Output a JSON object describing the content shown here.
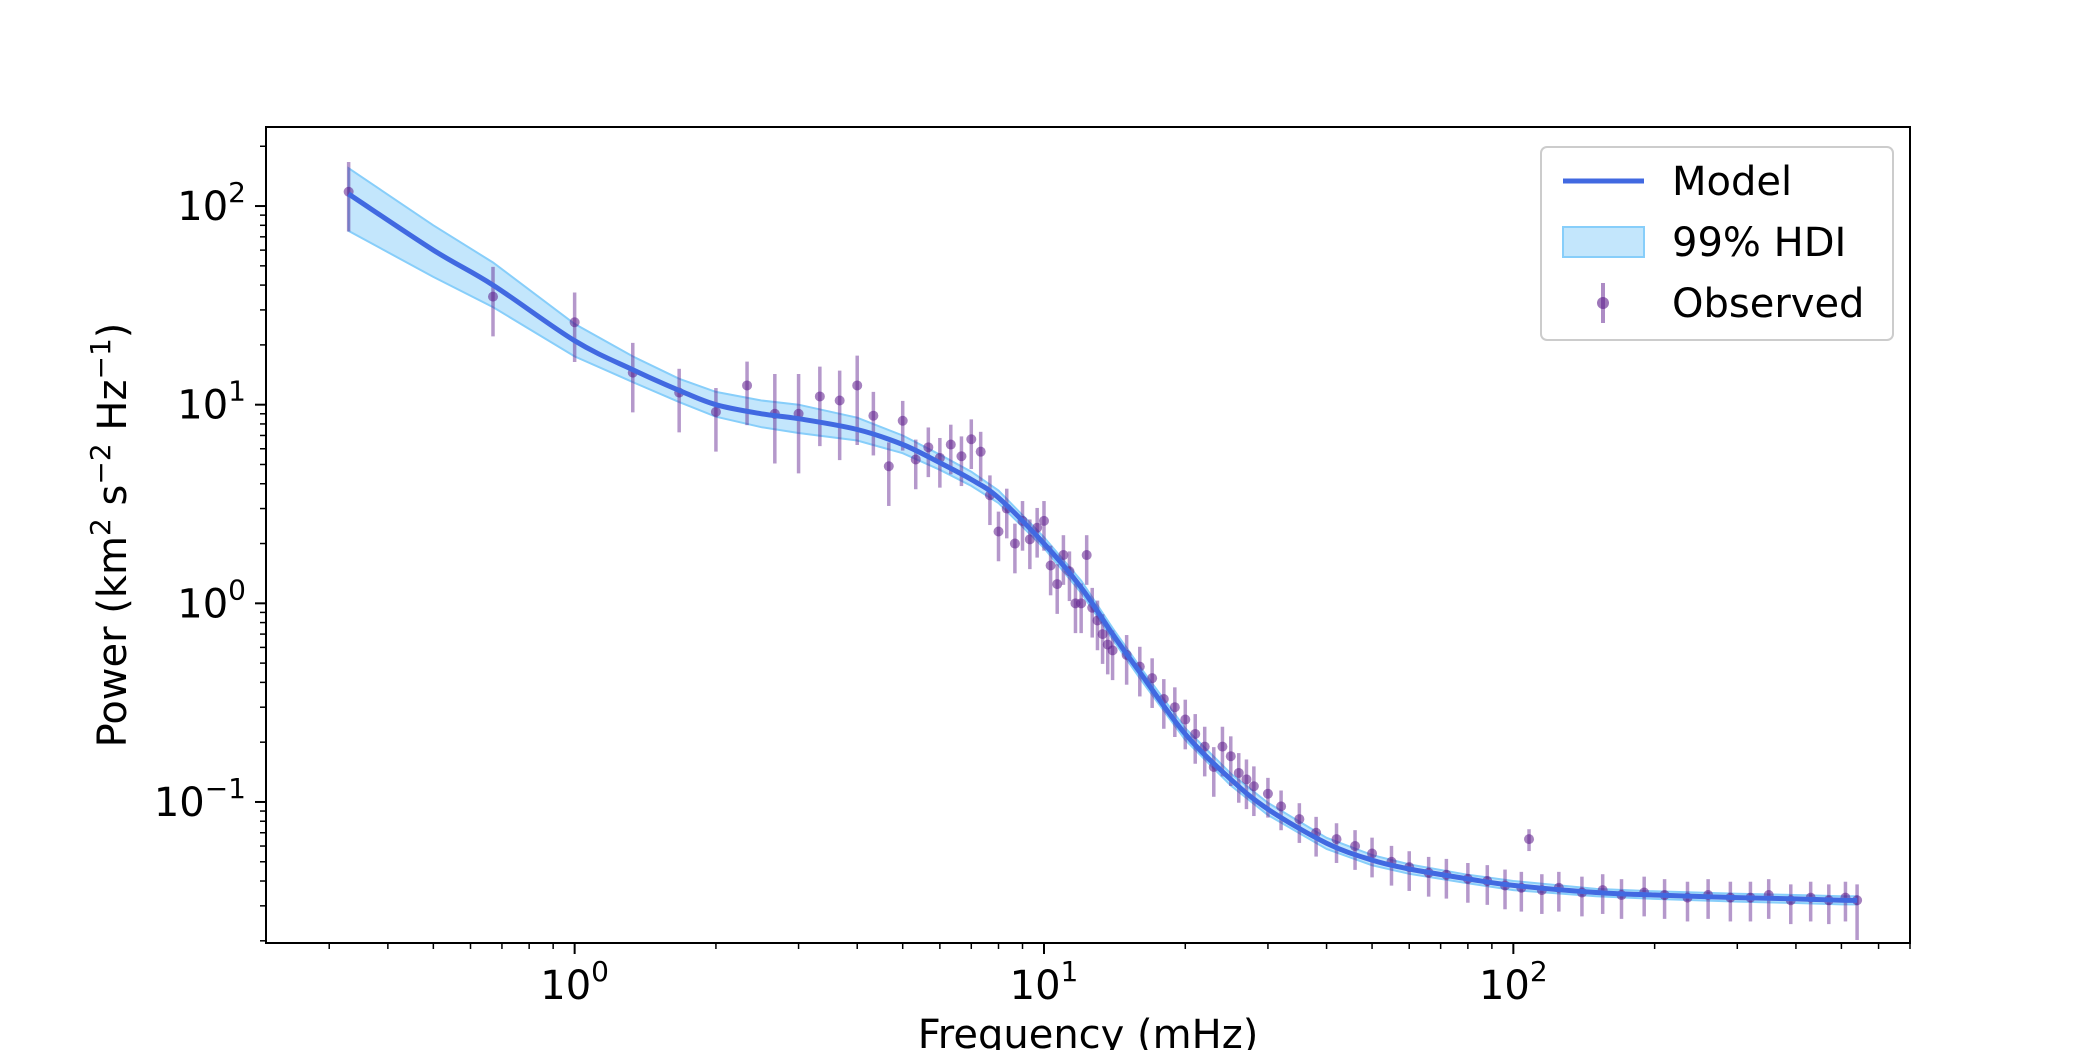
{
  "chart_data": {
    "type": "line",
    "title": "",
    "xlabel": "Frequency (mHz)",
    "ylabel_parts": {
      "a": "Power (km",
      "a_exp": "2",
      "b": " s",
      "b_exp": "−2",
      "c": " Hz",
      "c_exp": "−1",
      "d": ")"
    },
    "x_scale": "log",
    "y_scale": "log",
    "xlim": [
      0.22,
      700
    ],
    "ylim": [
      0.0195,
      250
    ],
    "x_ticks": [
      {
        "value": 1,
        "base": "10",
        "exp": "0"
      },
      {
        "value": 10,
        "base": "10",
        "exp": "1"
      },
      {
        "value": 100,
        "base": "10",
        "exp": "2"
      }
    ],
    "y_ticks": [
      {
        "value": 0.1,
        "base": "10",
        "exp": "−1"
      },
      {
        "value": 1,
        "base": "10",
        "exp": "0"
      },
      {
        "value": 10,
        "base": "10",
        "exp": "1"
      },
      {
        "value": 100,
        "base": "10",
        "exp": "2"
      }
    ],
    "legend": {
      "position": "top-right",
      "entries": [
        "Model",
        "99% HDI",
        "Observed"
      ]
    },
    "colors": {
      "model": "#4169e1",
      "hdi_fill": "#87cefa",
      "observed": "#5b1a8b"
    },
    "model": {
      "name": "Model",
      "x": [
        0.33,
        0.5,
        0.67,
        1.0,
        1.33,
        1.67,
        2.0,
        2.5,
        3.0,
        4.0,
        5.0,
        6.0,
        7.0,
        8.0,
        10.0,
        12.0,
        14.0,
        16.0,
        20.0,
        25.0,
        30.0,
        40.0,
        50.0,
        60.0,
        80.0,
        100.0,
        150.0,
        200.0,
        300.0,
        400.0,
        500.0,
        540.0
      ],
      "y": [
        115,
        60,
        40,
        21,
        15,
        11.8,
        10.0,
        9.0,
        8.5,
        7.5,
        6.3,
        5.1,
        4.2,
        3.4,
        2.0,
        1.2,
        0.7,
        0.45,
        0.22,
        0.13,
        0.092,
        0.062,
        0.051,
        0.046,
        0.041,
        0.038,
        0.035,
        0.034,
        0.033,
        0.0325,
        0.032,
        0.032
      ]
    },
    "hdi": {
      "name": "99% HDI",
      "x": [
        0.33,
        0.5,
        0.67,
        1.0,
        1.33,
        1.67,
        2.0,
        2.5,
        3.0,
        4.0,
        5.0,
        6.0,
        7.0,
        8.0,
        10.0,
        12.0,
        14.0,
        16.0,
        20.0,
        25.0,
        30.0,
        40.0,
        50.0,
        60.0,
        80.0,
        100.0,
        150.0,
        200.0,
        300.0,
        400.0,
        500.0,
        540.0
      ],
      "lower": [
        75,
        44,
        31,
        17.5,
        13,
        10.3,
        8.7,
        7.7,
        7.2,
        6.6,
        5.7,
        4.7,
        3.9,
        3.2,
        1.9,
        1.13,
        0.66,
        0.42,
        0.205,
        0.121,
        0.086,
        0.058,
        0.048,
        0.0435,
        0.039,
        0.036,
        0.0335,
        0.0325,
        0.0315,
        0.031,
        0.0305,
        0.0305
      ],
      "upper": [
        155,
        80,
        52,
        25.5,
        17.5,
        13.5,
        11.6,
        10.5,
        10.0,
        8.6,
        7.0,
        5.6,
        4.6,
        3.7,
        2.15,
        1.3,
        0.75,
        0.48,
        0.235,
        0.139,
        0.099,
        0.066,
        0.054,
        0.0485,
        0.043,
        0.04,
        0.0365,
        0.0355,
        0.0345,
        0.034,
        0.0335,
        0.0335
      ]
    },
    "observed": {
      "name": "Observed",
      "x": [
        0.33,
        0.67,
        1.0,
        1.33,
        1.67,
        2.0,
        2.33,
        2.67,
        3.0,
        3.33,
        3.67,
        4.0,
        4.33,
        4.67,
        5.0,
        5.33,
        5.67,
        6.0,
        6.33,
        6.67,
        7.0,
        7.33,
        7.67,
        8.0,
        8.33,
        8.67,
        9.0,
        9.33,
        9.67,
        10.0,
        10.33,
        10.67,
        11.0,
        11.33,
        11.67,
        12.0,
        12.33,
        12.67,
        13.0,
        13.33,
        13.67,
        14.0,
        15.0,
        16.0,
        17.0,
        18.0,
        19.0,
        20.0,
        21.0,
        22.0,
        23.0,
        24.0,
        25.0,
        26.0,
        27.0,
        28.0,
        30.0,
        32.0,
        35.0,
        38.0,
        42.0,
        46.0,
        50.0,
        55.0,
        60.0,
        66.0,
        72.0,
        80.0,
        88.0,
        96.0,
        104.0,
        108.0,
        115.0,
        125.0,
        140.0,
        155.0,
        170.0,
        190.0,
        210.0,
        235.0,
        260.0,
        290.0,
        320.0,
        350.0,
        390.0,
        430.0,
        470.0,
        510.0,
        540.0
      ],
      "y": [
        118,
        35,
        26,
        14.5,
        11.5,
        9.2,
        12.5,
        9.0,
        9.0,
        11.0,
        10.5,
        12.5,
        8.8,
        4.9,
        8.3,
        5.3,
        6.1,
        5.4,
        6.3,
        5.5,
        6.7,
        5.8,
        3.5,
        2.3,
        3.0,
        2.0,
        2.6,
        2.1,
        2.4,
        2.6,
        1.55,
        1.25,
        1.75,
        1.45,
        1.0,
        1.0,
        1.75,
        0.95,
        0.82,
        0.7,
        0.62,
        0.58,
        0.55,
        0.48,
        0.42,
        0.33,
        0.3,
        0.26,
        0.22,
        0.19,
        0.15,
        0.19,
        0.17,
        0.14,
        0.13,
        0.12,
        0.11,
        0.095,
        0.082,
        0.07,
        0.065,
        0.06,
        0.055,
        0.05,
        0.047,
        0.044,
        0.043,
        0.041,
        0.04,
        0.038,
        0.037,
        0.065,
        0.036,
        0.037,
        0.035,
        0.036,
        0.034,
        0.035,
        0.034,
        0.033,
        0.034,
        0.033,
        0.033,
        0.034,
        0.032,
        0.033,
        0.032,
        0.033,
        0.032
      ],
      "err_lower": [
        0.2,
        0.2,
        0.2,
        0.2,
        0.2,
        0.2,
        0.2,
        0.25,
        0.3,
        0.25,
        0.3,
        0.3,
        0.2,
        0.2,
        0.15,
        0.15,
        0.15,
        0.15,
        0.15,
        0.15,
        0.15,
        0.15,
        0.15,
        0.15,
        0.15,
        0.15,
        0.15,
        0.15,
        0.15,
        0.15,
        0.15,
        0.15,
        0.15,
        0.15,
        0.15,
        0.15,
        0.15,
        0.15,
        0.15,
        0.15,
        0.15,
        0.15,
        0.15,
        0.15,
        0.15,
        0.15,
        0.15,
        0.15,
        0.15,
        0.15,
        0.15,
        0.15,
        0.15,
        0.15,
        0.15,
        0.15,
        0.12,
        0.12,
        0.12,
        0.12,
        0.12,
        0.12,
        0.12,
        0.12,
        0.12,
        0.12,
        0.12,
        0.12,
        0.12,
        0.12,
        0.12,
        0.06,
        0.12,
        0.12,
        0.12,
        0.12,
        0.12,
        0.12,
        0.12,
        0.12,
        0.12,
        0.12,
        0.12,
        0.12,
        0.12,
        0.12,
        0.12,
        0.12,
        0.2
      ],
      "err_upper": [
        0.15,
        0.15,
        0.15,
        0.15,
        0.12,
        0.12,
        0.12,
        0.2,
        0.2,
        0.15,
        0.15,
        0.15,
        0.12,
        0.12,
        0.1,
        0.1,
        0.1,
        0.1,
        0.1,
        0.1,
        0.1,
        0.1,
        0.1,
        0.1,
        0.1,
        0.1,
        0.1,
        0.1,
        0.1,
        0.1,
        0.1,
        0.1,
        0.1,
        0.1,
        0.1,
        0.1,
        0.1,
        0.1,
        0.1,
        0.1,
        0.1,
        0.1,
        0.1,
        0.1,
        0.1,
        0.1,
        0.1,
        0.1,
        0.1,
        0.1,
        0.1,
        0.1,
        0.1,
        0.1,
        0.1,
        0.1,
        0.08,
        0.08,
        0.08,
        0.08,
        0.08,
        0.08,
        0.08,
        0.08,
        0.08,
        0.08,
        0.08,
        0.08,
        0.08,
        0.08,
        0.08,
        0.05,
        0.08,
        0.08,
        0.08,
        0.08,
        0.08,
        0.08,
        0.08,
        0.08,
        0.08,
        0.08,
        0.08,
        0.08,
        0.08,
        0.08,
        0.08,
        0.08,
        0.08
      ]
    }
  }
}
